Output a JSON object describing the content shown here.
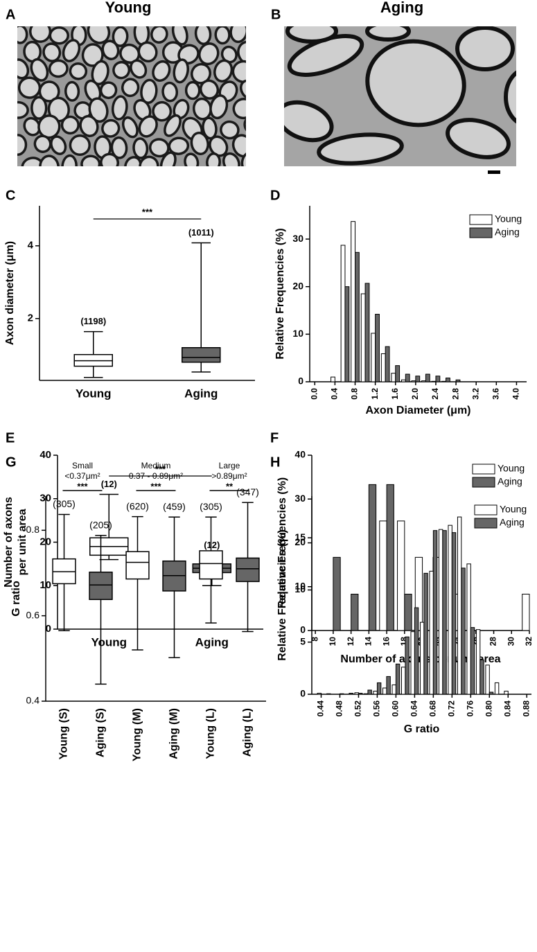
{
  "figure_panels": [
    {
      "label": "A",
      "title": "Young"
    },
    {
      "label": "B",
      "title": "Aging"
    }
  ],
  "chart_data": [
    {
      "label": "C",
      "type": "box",
      "ylabel": [
        "Axon diameter (μm)"
      ],
      "categories": [
        "Young",
        "Aging"
      ],
      "colors": [
        "#ffffff",
        "#666666"
      ],
      "values": [
        [
          0.38,
          0.69,
          0.84,
          1.01,
          1.64
        ],
        [
          0.53,
          0.8,
          0.93,
          1.2,
          4.08
        ]
      ],
      "n_labels": [
        "(1198)",
        "(1011)"
      ],
      "significance": [
        "***"
      ],
      "ylim": [
        0.3,
        5.1
      ],
      "yticks": [
        2,
        4
      ]
    },
    {
      "label": "D",
      "type": "bar",
      "ylabel": [
        "Relative Frequencies (%)"
      ],
      "xlabel": "Axon Diameter (μm)",
      "x": [
        0.4,
        0.6,
        0.8,
        1.0,
        1.2,
        1.4,
        1.6,
        1.8,
        2.0,
        2.2,
        2.4,
        2.6,
        2.8
      ],
      "series": [
        {
          "name": "Young",
          "color": "#ffffff",
          "values": [
            1,
            28.7,
            33.7,
            18.5,
            10.2,
            5.9,
            1.8,
            0.4,
            0.2,
            0.2,
            0.1,
            0.1,
            0
          ]
        },
        {
          "name": "Aging",
          "color": "#666666",
          "values": [
            0,
            20,
            27.2,
            20.7,
            14.2,
            7.4,
            3.4,
            1.6,
            1.2,
            1.6,
            1.2,
            0.8,
            0.4
          ]
        }
      ],
      "xlim": [
        -0.1,
        4.2
      ],
      "xticks": [
        {
          "value": 0,
          "label": "0.0"
        },
        0.4,
        0.8,
        1.2,
        1.6,
        {
          "value": 2,
          "label": "2.0"
        },
        2.4,
        2.8,
        3.2,
        3.6,
        {
          "value": 4,
          "label": "4.0"
        }
      ],
      "ylim": [
        0,
        37
      ],
      "yticks": [
        0,
        10,
        20,
        30
      ],
      "legend": "upper right"
    },
    {
      "label": "E",
      "type": "box",
      "ylabel": [
        "Number of axons",
        "per unit area"
      ],
      "categories": [
        "Young",
        "Aging"
      ],
      "colors": [
        "#ffffff",
        "#666666"
      ],
      "values": [
        [
          16,
          17,
          19,
          21,
          31
        ],
        [
          10,
          13,
          14,
          15,
          17
        ]
      ],
      "n_labels": [
        "(12)",
        "(12)"
      ],
      "significance": [
        "***"
      ],
      "ylim": [
        0,
        40
      ],
      "yticks": [
        0,
        10,
        20,
        30,
        40
      ]
    },
    {
      "label": "F",
      "type": "bar",
      "ylabel": [
        "Relative Frequencies (%)"
      ],
      "xlabel": "Number of axons per unit area",
      "x": [
        10,
        12,
        14,
        16,
        18,
        20,
        22,
        24,
        26,
        28,
        30,
        32
      ],
      "series": [
        {
          "name": "Young",
          "color": "#ffffff",
          "values": [
            0,
            0,
            0,
            25,
            25,
            16.7,
            16.7,
            8.3,
            0,
            0,
            0,
            8.3
          ]
        },
        {
          "name": "Aging",
          "color": "#666666",
          "values": [
            16.7,
            8.3,
            33.3,
            33.3,
            8.3,
            0,
            0,
            0,
            0,
            0,
            0,
            0
          ]
        }
      ],
      "xlim": [
        7.6,
        32
      ],
      "xticks": [
        8,
        10,
        12,
        14,
        16,
        18,
        20,
        22,
        24,
        26,
        28,
        30,
        32
      ],
      "ylim": [
        0,
        40
      ],
      "yticks": [
        0,
        10,
        20,
        30,
        40
      ],
      "legend": "upper right"
    },
    {
      "label": "G",
      "type": "box",
      "ylabel": [
        "G ratio"
      ],
      "categories": [
        "Young (S)",
        "Aging (S)",
        "Young (M)",
        "Aging (M)",
        "Young (L)",
        "Aging (L)"
      ],
      "colors": [
        "#ffffff",
        "#666666",
        "#ffffff",
        "#666666",
        "#ffffff",
        "#666666"
      ],
      "values": [
        [
          0.565,
          0.675,
          0.703,
          0.733,
          0.837
        ],
        [
          0.44,
          0.638,
          0.672,
          0.702,
          0.788
        ],
        [
          0.52,
          0.686,
          0.725,
          0.75,
          0.832
        ],
        [
          0.502,
          0.658,
          0.694,
          0.728,
          0.831
        ],
        [
          0.583,
          0.686,
          0.722,
          0.752,
          0.831
        ],
        [
          0.563,
          0.68,
          0.71,
          0.735,
          0.865
        ]
      ],
      "n_labels": [
        "(305)",
        "(205)",
        "(620)",
        "(459)",
        "(305)",
        "(347)"
      ],
      "groups": [
        {
          "name": "Small",
          "size": "<0.37μm²",
          "significance": "***"
        },
        {
          "name": "Medium",
          "size": "0.37 - 0.89μm²",
          "significance": "***"
        },
        {
          "name": "Large",
          "size": ">0.89μm²",
          "significance": "**"
        }
      ],
      "ylim": [
        0.4,
        0.88
      ],
      "yticks": [
        0.4,
        0.6,
        0.8
      ]
    },
    {
      "label": "H",
      "type": "bar",
      "ylabel": [
        "Relative Frequencies (%)"
      ],
      "xlabel": "G ratio",
      "x": [
        0.44,
        0.46,
        0.48,
        0.5,
        0.52,
        0.54,
        0.56,
        0.58,
        0.6,
        0.62,
        0.64,
        0.66,
        0.68,
        0.7,
        0.72,
        0.74,
        0.76,
        0.78,
        0.8,
        0.82,
        0.84,
        0.86
      ],
      "series": [
        {
          "name": "Young",
          "color": "#ffffff",
          "values": [
            0.1,
            0.05,
            0,
            0,
            0.15,
            0.05,
            0.3,
            0.6,
            0.9,
            2.6,
            6,
            6.9,
            11.8,
            15.8,
            16.2,
            17,
            12.5,
            6.2,
            2.8,
            1.1,
            0.3,
            0
          ]
        },
        {
          "name": "Aging",
          "color": "#666666",
          "values": [
            0,
            0,
            0.05,
            0.1,
            0.1,
            0.4,
            1.1,
            1.7,
            2.9,
            5.5,
            8.3,
            11.6,
            15.7,
            15.7,
            15.5,
            12.1,
            6.4,
            3.3,
            0.2,
            0,
            0,
            0
          ]
        }
      ],
      "xlim": [
        0.42,
        0.89
      ],
      "xticks": [
        0.44,
        0.48,
        0.52,
        0.56,
        {
          "value": 0.6,
          "label": "0.60"
        },
        0.64,
        0.68,
        0.72,
        0.76,
        {
          "value": 0.8,
          "label": "0.80"
        },
        0.84,
        0.88
      ],
      "ylim": [
        0,
        19
      ],
      "yticks": [
        0,
        5,
        10,
        15
      ],
      "legend": "upper right"
    }
  ]
}
